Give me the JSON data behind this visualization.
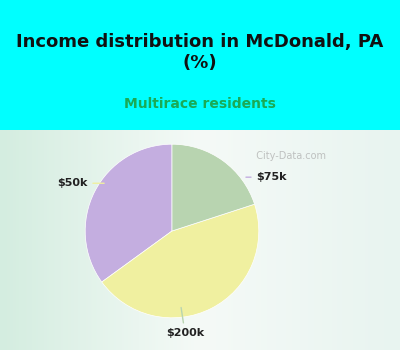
{
  "title": "Income distribution in McDonald, PA\n(%)",
  "subtitle": "Multirace residents",
  "title_color": "#111111",
  "subtitle_color": "#2ecc71",
  "subtitle_color_actual": "#1aaa55",
  "top_bg_color": "#00FFFF",
  "chart_bg_start": "#e8f5e9",
  "slices": [
    {
      "label": "$75k",
      "value": 35,
      "color": "#c4aee0"
    },
    {
      "label": "$50k",
      "value": 45,
      "color": "#f0f0a0"
    },
    {
      "label": "$200k",
      "value": 20,
      "color": "#b8d4b0"
    }
  ],
  "watermark": "City-Data.com",
  "startangle": 90
}
